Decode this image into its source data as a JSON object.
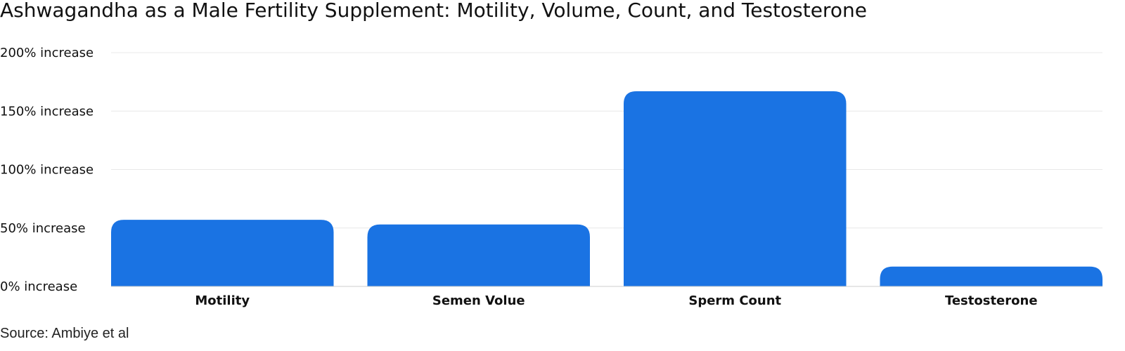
{
  "title": "Ashwagandha as a Male Fertility Supplement: Motility, Volume, Count, and Testosterone",
  "source": "Source: Ambiye et al",
  "colors": {
    "bar": "#1a73e3",
    "grid": "#e8e8e8",
    "axis": "#cccccc",
    "text": "#111111"
  },
  "chart_data": {
    "type": "bar",
    "categories": [
      "Motility",
      "Semen Volue",
      "Sperm Count",
      "Testosterone"
    ],
    "values": [
      57,
      53,
      167,
      17
    ],
    "ylim": [
      0,
      200
    ],
    "yticks": [
      0,
      50,
      100,
      150,
      200
    ],
    "ytick_labels": [
      "0% increase",
      "50% increase",
      "100% increase",
      "150% increase",
      "200% increase"
    ],
    "xlabel": "",
    "ylabel": "",
    "grid": true
  }
}
